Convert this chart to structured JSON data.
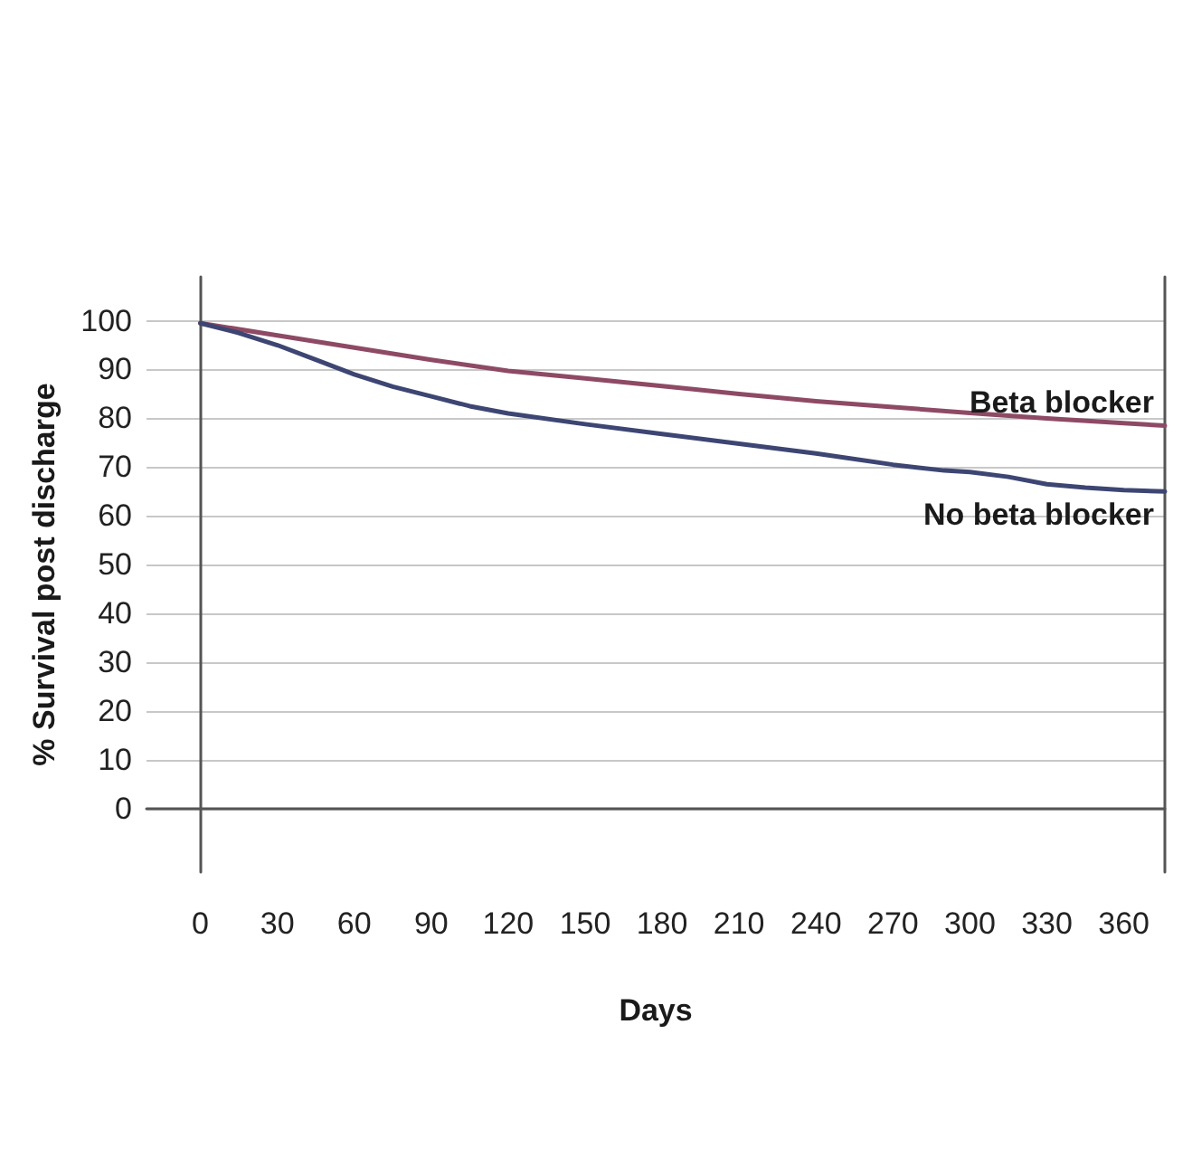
{
  "chart_data": {
    "type": "line",
    "xlabel": "Days",
    "ylabel": "% Survival post discharge",
    "xlim": [
      -21,
      376
    ],
    "xticks": [
      0,
      30,
      60,
      90,
      120,
      150,
      180,
      210,
      240,
      270,
      300,
      330,
      360
    ],
    "ylim": [
      -13,
      109
    ],
    "yticks": [
      0,
      10,
      20,
      30,
      40,
      50,
      60,
      70,
      80,
      90,
      100
    ],
    "grid": "y",
    "legend": false,
    "marker": "none",
    "line_style": "solid",
    "series": [
      {
        "name": "Beta blocker",
        "color": "#8e4a64",
        "x": [
          0,
          30,
          60,
          90,
          120,
          150,
          180,
          210,
          240,
          270,
          300,
          330,
          360,
          376
        ],
        "values": [
          99.5,
          97,
          94.5,
          92,
          89.7,
          88.2,
          86.6,
          85,
          83.5,
          82.3,
          81.1,
          80,
          79,
          78.5
        ]
      },
      {
        "name": "No beta blocker",
        "color": "#3d4673",
        "x": [
          0,
          15,
          30,
          45,
          60,
          75,
          90,
          105,
          120,
          150,
          180,
          210,
          240,
          270,
          290,
          300,
          315,
          330,
          345,
          360,
          376
        ],
        "values": [
          99.5,
          97.5,
          95,
          92,
          89,
          86.5,
          84.5,
          82.5,
          81,
          78.8,
          76.8,
          74.8,
          72.8,
          70.5,
          69.3,
          69,
          68,
          66.5,
          65.8,
          65.3,
          65
        ]
      }
    ]
  }
}
